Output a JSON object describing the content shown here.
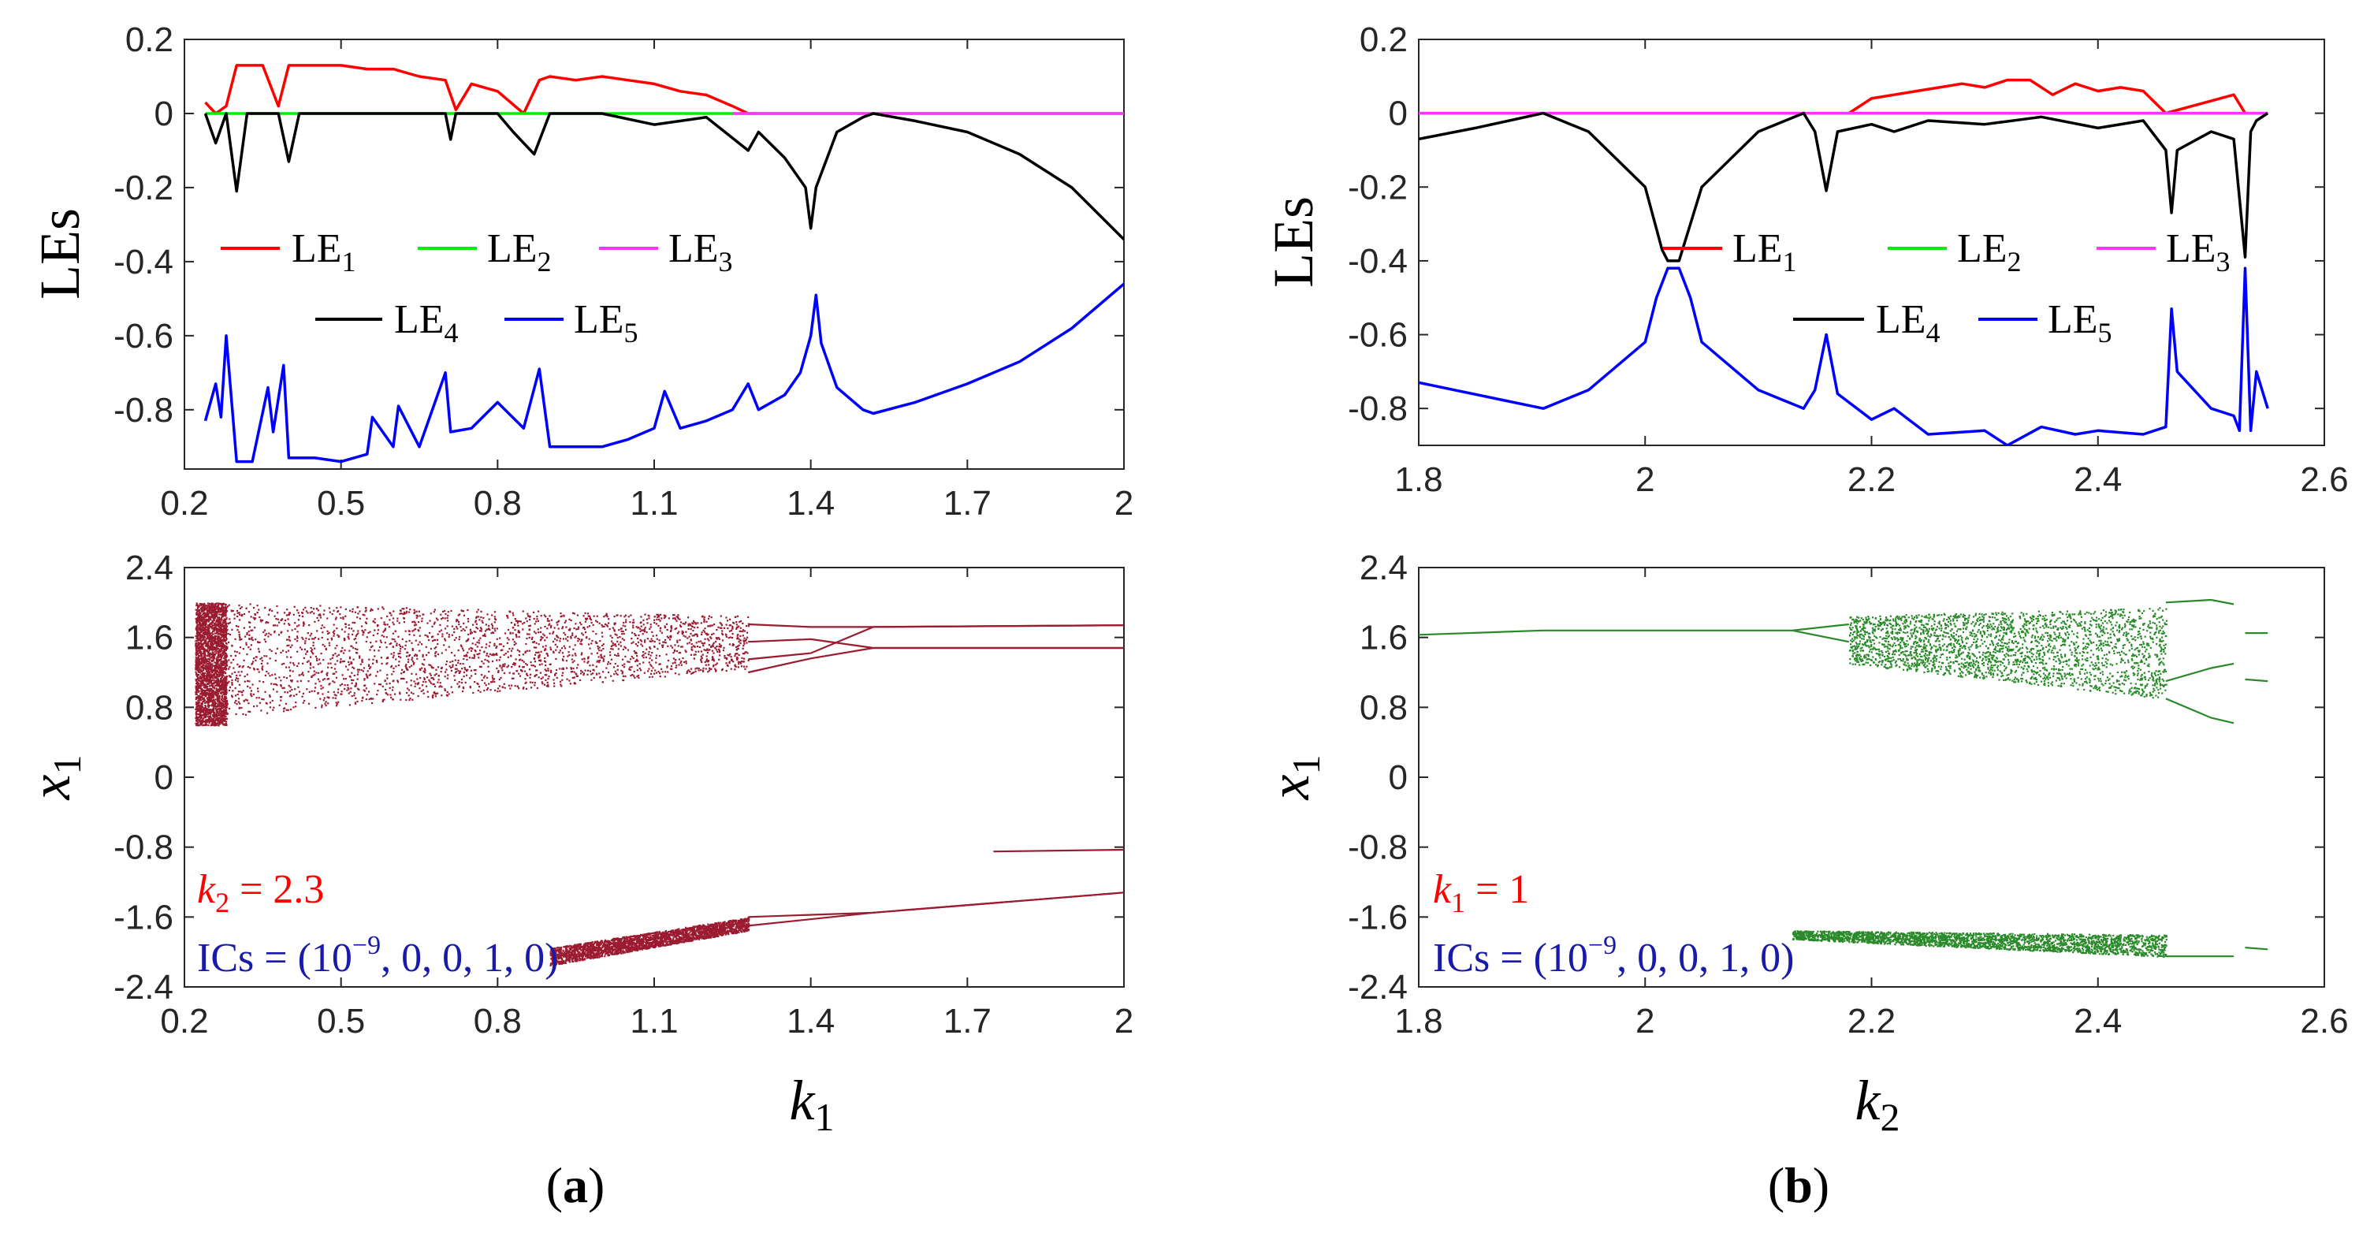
{
  "chart_data": [
    {
      "id": "a_top",
      "type": "line",
      "xlabel": "",
      "ylabel": "LEs",
      "xlim": [
        0.2,
        2.0
      ],
      "ylim": [
        -0.96,
        0.2
      ],
      "xticks": [
        "0.2",
        "0.5",
        "0.8",
        "1.1",
        "1.4",
        "1.7",
        "2"
      ],
      "xtick_values": [
        0.2,
        0.5,
        0.8,
        1.1,
        1.4,
        1.7,
        2.0
      ],
      "yticks": [
        "0.2",
        "0",
        "-0.2",
        "-0.4",
        "-0.6",
        "-0.8"
      ],
      "ytick_values": [
        0.2,
        0,
        -0.2,
        -0.4,
        -0.6,
        -0.8
      ],
      "legend": [
        {
          "sym": "LE",
          "sub": "1",
          "color": "#ff0000"
        },
        {
          "sym": "LE",
          "sub": "2",
          "color": "#00ee00"
        },
        {
          "sym": "LE",
          "sub": "3",
          "color": "#ff33ff"
        },
        {
          "sym": "LE",
          "sub": "4",
          "color": "#000000"
        },
        {
          "sym": "LE",
          "sub": "5",
          "color": "#0000ff"
        }
      ],
      "series": [
        {
          "name": "LE1",
          "color": "#ff0000",
          "x": [
            0.24,
            0.26,
            0.28,
            0.3,
            0.32,
            0.35,
            0.38,
            0.4,
            0.45,
            0.5,
            0.55,
            0.6,
            0.65,
            0.7,
            0.72,
            0.75,
            0.8,
            0.85,
            0.88,
            0.9,
            0.95,
            1.0,
            1.05,
            1.1,
            1.15,
            1.2,
            1.25,
            1.28,
            1.3
          ],
          "values": [
            0.03,
            0.0,
            0.02,
            0.13,
            0.13,
            0.13,
            0.02,
            0.13,
            0.13,
            0.13,
            0.12,
            0.12,
            0.1,
            0.09,
            0.01,
            0.08,
            0.06,
            0.0,
            0.09,
            0.1,
            0.09,
            0.1,
            0.09,
            0.08,
            0.06,
            0.05,
            0.02,
            0.0,
            0.0
          ]
        },
        {
          "name": "LE2",
          "color": "#00ee00",
          "x": [
            0.24,
            2.0
          ],
          "values": [
            0.0,
            0.0
          ]
        },
        {
          "name": "LE3",
          "color": "#ff33ff",
          "x": [
            1.25,
            2.0
          ],
          "values": [
            0.0,
            0.0
          ]
        },
        {
          "name": "LE4",
          "color": "#000000",
          "x": [
            0.24,
            0.26,
            0.28,
            0.3,
            0.32,
            0.38,
            0.4,
            0.42,
            0.6,
            0.7,
            0.71,
            0.72,
            0.8,
            0.83,
            0.87,
            0.9,
            1.0,
            1.1,
            1.2,
            1.28,
            1.3,
            1.35,
            1.39,
            1.4,
            1.41,
            1.45,
            1.5,
            1.52,
            1.6,
            1.7,
            1.8,
            1.9,
            2.0
          ],
          "values": [
            0.0,
            -0.08,
            0.0,
            -0.21,
            0.0,
            0.0,
            -0.13,
            0.0,
            0.0,
            0.0,
            -0.07,
            0.0,
            0.0,
            -0.05,
            -0.11,
            0.0,
            0.0,
            -0.03,
            -0.01,
            -0.1,
            -0.05,
            -0.12,
            -0.2,
            -0.31,
            -0.2,
            -0.05,
            -0.01,
            0.0,
            -0.02,
            -0.05,
            -0.11,
            -0.2,
            -0.34
          ]
        },
        {
          "name": "LE5",
          "color": "#0000ff",
          "x": [
            0.24,
            0.26,
            0.27,
            0.28,
            0.3,
            0.33,
            0.36,
            0.37,
            0.39,
            0.4,
            0.45,
            0.5,
            0.55,
            0.56,
            0.6,
            0.61,
            0.65,
            0.7,
            0.71,
            0.75,
            0.8,
            0.85,
            0.88,
            0.9,
            0.95,
            1.0,
            1.05,
            1.1,
            1.12,
            1.15,
            1.2,
            1.25,
            1.28,
            1.3,
            1.35,
            1.38,
            1.4,
            1.41,
            1.42,
            1.45,
            1.5,
            1.52,
            1.6,
            1.7,
            1.8,
            1.9,
            2.0
          ],
          "values": [
            -0.83,
            -0.73,
            -0.82,
            -0.6,
            -0.94,
            -0.94,
            -0.74,
            -0.86,
            -0.68,
            -0.93,
            -0.93,
            -0.94,
            -0.92,
            -0.82,
            -0.9,
            -0.79,
            -0.9,
            -0.7,
            -0.86,
            -0.85,
            -0.78,
            -0.85,
            -0.69,
            -0.9,
            -0.9,
            -0.9,
            -0.88,
            -0.85,
            -0.75,
            -0.85,
            -0.83,
            -0.8,
            -0.73,
            -0.8,
            -0.76,
            -0.7,
            -0.6,
            -0.49,
            -0.62,
            -0.74,
            -0.8,
            -0.81,
            -0.78,
            -0.73,
            -0.67,
            -0.58,
            -0.46
          ]
        }
      ]
    },
    {
      "id": "b_top",
      "type": "line",
      "xlabel": "",
      "ylabel": "LEs",
      "xlim": [
        1.8,
        2.6
      ],
      "ylim": [
        -0.9,
        0.2
      ],
      "xticks": [
        "1.8",
        "2",
        "2.2",
        "2.4",
        "2.6"
      ],
      "xtick_values": [
        1.8,
        2.0,
        2.2,
        2.4,
        2.6
      ],
      "yticks": [
        "0.2",
        "0",
        "-0.2",
        "-0.4",
        "-0.6",
        "-0.8"
      ],
      "ytick_values": [
        0.2,
        0,
        -0.2,
        -0.4,
        -0.6,
        -0.8
      ],
      "legend": [
        {
          "sym": "LE",
          "sub": "1",
          "color": "#ff0000"
        },
        {
          "sym": "LE",
          "sub": "2",
          "color": "#00ee00"
        },
        {
          "sym": "LE",
          "sub": "3",
          "color": "#ff33ff"
        },
        {
          "sym": "LE",
          "sub": "4",
          "color": "#000000"
        },
        {
          "sym": "LE",
          "sub": "5",
          "color": "#0000ff"
        }
      ],
      "series": [
        {
          "name": "LE1",
          "color": "#ff0000",
          "x": [
            2.18,
            2.2,
            2.22,
            2.24,
            2.26,
            2.28,
            2.3,
            2.32,
            2.34,
            2.36,
            2.38,
            2.4,
            2.42,
            2.44,
            2.46,
            2.52,
            2.53
          ],
          "values": [
            0.0,
            0.04,
            0.05,
            0.06,
            0.07,
            0.08,
            0.07,
            0.09,
            0.09,
            0.05,
            0.08,
            0.06,
            0.07,
            0.06,
            0.0,
            0.05,
            0.0
          ]
        },
        {
          "name": "LE2",
          "color": "#00ee00",
          "x": [
            1.8,
            2.55
          ],
          "values": [
            0.0,
            0.0
          ]
        },
        {
          "name": "LE3",
          "color": "#ff33ff",
          "x": [
            1.8,
            2.55
          ],
          "values": [
            0.0,
            0.0
          ]
        },
        {
          "name": "LE4",
          "color": "#000000",
          "x": [
            1.8,
            1.85,
            1.91,
            1.95,
            2.0,
            2.015,
            2.02,
            2.03,
            2.05,
            2.1,
            2.14,
            2.15,
            2.16,
            2.17,
            2.2,
            2.22,
            2.25,
            2.3,
            2.35,
            2.4,
            2.44,
            2.46,
            2.465,
            2.47,
            2.5,
            2.52,
            2.53,
            2.535,
            2.54,
            2.55
          ],
          "values": [
            -0.07,
            -0.04,
            0.0,
            -0.05,
            -0.2,
            -0.37,
            -0.4,
            -0.4,
            -0.2,
            -0.05,
            0.0,
            -0.05,
            -0.21,
            -0.05,
            -0.03,
            -0.05,
            -0.02,
            -0.03,
            -0.01,
            -0.04,
            -0.02,
            -0.1,
            -0.27,
            -0.1,
            -0.05,
            -0.07,
            -0.39,
            -0.05,
            -0.02,
            0.0
          ]
        },
        {
          "name": "LE5",
          "color": "#0000ff",
          "x": [
            1.8,
            1.91,
            1.95,
            2.0,
            2.01,
            2.02,
            2.03,
            2.04,
            2.05,
            2.1,
            2.14,
            2.15,
            2.16,
            2.17,
            2.2,
            2.22,
            2.25,
            2.3,
            2.32,
            2.35,
            2.38,
            2.4,
            2.44,
            2.46,
            2.465,
            2.47,
            2.5,
            2.52,
            2.525,
            2.53,
            2.535,
            2.54,
            2.55
          ],
          "values": [
            -0.73,
            -0.8,
            -0.75,
            -0.62,
            -0.5,
            -0.42,
            -0.42,
            -0.5,
            -0.62,
            -0.75,
            -0.8,
            -0.75,
            -0.6,
            -0.76,
            -0.83,
            -0.8,
            -0.87,
            -0.86,
            -0.9,
            -0.85,
            -0.87,
            -0.86,
            -0.87,
            -0.85,
            -0.53,
            -0.7,
            -0.8,
            -0.82,
            -0.86,
            -0.42,
            -0.86,
            -0.7,
            -0.8
          ]
        }
      ]
    },
    {
      "id": "a_bottom",
      "type": "scatter",
      "xlabel_sym": "k",
      "xlabel_sub": "1",
      "ylabel_sym": "x",
      "ylabel_sub": "1",
      "xlim": [
        0.2,
        2.0
      ],
      "ylim": [
        -2.4,
        2.4
      ],
      "xticks": [
        "0.2",
        "0.5",
        "0.8",
        "1.1",
        "1.4",
        "1.7",
        "2"
      ],
      "xtick_values": [
        0.2,
        0.5,
        0.8,
        1.1,
        1.4,
        1.7,
        2.0
      ],
      "yticks": [
        "2.4",
        "1.6",
        "0.8",
        "0",
        "-0.8",
        "-1.6",
        "-2.4"
      ],
      "ytick_values": [
        2.4,
        1.6,
        0.8,
        0,
        -0.8,
        -1.6,
        -2.4
      ],
      "color": "#9b1b30",
      "chaotic_bands": [
        {
          "x0": 0.22,
          "x1": 0.28,
          "top_start": 2.0,
          "top_end": 2.0,
          "bot_start": 0.6,
          "bot_end": 0.6
        },
        {
          "x0": 0.28,
          "x1": 1.28,
          "top_start": 2.0,
          "top_end": 1.85,
          "bot_start": 0.7,
          "bot_end": 1.25
        },
        {
          "x0": 0.9,
          "x1": 1.28,
          "top_start": -1.95,
          "top_end": -1.6,
          "bot_start": -2.15,
          "bot_end": -1.75
        }
      ],
      "branches": [
        {
          "x": [
            1.28,
            1.4,
            1.52,
            2.0
          ],
          "values": [
            1.75,
            1.72,
            1.72,
            1.74
          ]
        },
        {
          "x": [
            1.28,
            1.4,
            1.52,
            2.0
          ],
          "values": [
            1.35,
            1.42,
            1.72,
            1.74
          ]
        },
        {
          "x": [
            1.28,
            1.4,
            1.52,
            2.0
          ],
          "values": [
            1.55,
            1.58,
            1.48,
            1.48
          ]
        },
        {
          "x": [
            1.28,
            1.4,
            1.52,
            2.0
          ],
          "values": [
            1.2,
            1.36,
            1.48,
            1.48
          ]
        },
        {
          "x": [
            1.28,
            1.52,
            2.0
          ],
          "values": [
            -1.6,
            -1.55,
            -1.32
          ]
        },
        {
          "x": [
            1.28,
            1.52,
            2.0
          ],
          "values": [
            -1.7,
            -1.55,
            -1.32
          ]
        },
        {
          "x": [
            1.75,
            2.0
          ],
          "values": [
            -0.85,
            -0.83
          ]
        }
      ],
      "annotations": [
        {
          "sym": "k",
          "sub": "2",
          "text": " = 2.3",
          "color": "#ff0000"
        },
        {
          "text_before": "ICs = (10",
          "sup": "−9",
          "text_after": ", 0, 0, 1, 0)",
          "color": "#1a1aa8"
        }
      ]
    },
    {
      "id": "b_bottom",
      "type": "scatter",
      "xlabel_sym": "k",
      "xlabel_sub": "2",
      "ylabel_sym": "x",
      "ylabel_sub": "1",
      "xlim": [
        1.8,
        2.6
      ],
      "ylim": [
        -2.4,
        2.4
      ],
      "xticks": [
        "1.8",
        "2",
        "2.2",
        "2.4",
        "2.6"
      ],
      "xtick_values": [
        1.8,
        2.0,
        2.2,
        2.4,
        2.6
      ],
      "yticks": [
        "2.4",
        "1.6",
        "0.8",
        "0",
        "-0.8",
        "-1.6",
        "-2.4"
      ],
      "ytick_values": [
        2.4,
        1.6,
        0.8,
        0,
        -0.8,
        -1.6,
        -2.4
      ],
      "color": "#2a8a2a",
      "chaotic_bands": [
        {
          "x0": 2.18,
          "x1": 2.46,
          "top_start": 1.85,
          "top_end": 1.95,
          "bot_start": 1.3,
          "bot_end": 0.9
        },
        {
          "x0": 2.13,
          "x1": 2.46,
          "top_start": -1.75,
          "top_end": -1.8,
          "bot_start": -1.85,
          "bot_end": -2.05
        }
      ],
      "branches": [
        {
          "x": [
            1.8,
            1.91,
            2.13,
            2.18
          ],
          "values": [
            1.63,
            1.68,
            1.68,
            1.75
          ]
        },
        {
          "x": [
            2.13,
            2.18
          ],
          "values": [
            1.68,
            1.55
          ]
        },
        {
          "x": [
            2.46,
            2.5,
            2.52
          ],
          "values": [
            2.0,
            2.03,
            1.98
          ]
        },
        {
          "x": [
            2.46,
            2.5,
            2.52
          ],
          "values": [
            1.1,
            1.25,
            1.3
          ]
        },
        {
          "x": [
            2.46,
            2.5,
            2.52
          ],
          "values": [
            0.9,
            0.68,
            0.62
          ]
        },
        {
          "x": [
            2.46,
            2.52
          ],
          "values": [
            -2.05,
            -2.05
          ]
        },
        {
          "x": [
            2.53,
            2.55
          ],
          "values": [
            1.65,
            1.65
          ]
        },
        {
          "x": [
            2.53,
            2.55
          ],
          "values": [
            1.12,
            1.1
          ]
        },
        {
          "x": [
            2.53,
            2.55
          ],
          "values": [
            -1.95,
            -1.97
          ]
        }
      ],
      "annotations": [
        {
          "sym": "k",
          "sub": "1",
          "text": " = 1",
          "color": "#ff0000"
        },
        {
          "text_before": "ICs = (10",
          "sup": "−9",
          "text_after": ", 0, 0, 1, 0)",
          "color": "#1a1aa8"
        }
      ]
    }
  ],
  "panel_labels": [
    {
      "open": "(",
      "letter": "a",
      "close": ")"
    },
    {
      "open": "(",
      "letter": "b",
      "close": ")"
    }
  ]
}
